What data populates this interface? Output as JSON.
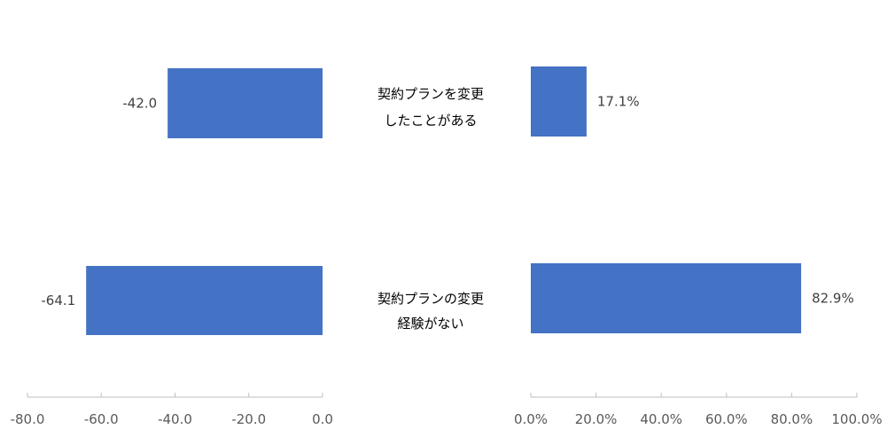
{
  "chart_data": [
    {
      "type": "bar",
      "orientation": "horizontal",
      "categories": [
        "契約プランを変更したことがある",
        "契約プランの変更経験がない"
      ],
      "category_lines": [
        [
          "契約プランを変更",
          "したことがある"
        ],
        [
          "契約プランの変更",
          "経験がない"
        ]
      ],
      "series": [
        {
          "values": [
            -42.0,
            -64.1
          ]
        }
      ],
      "value_labels": [
        "-42.0",
        "-64.1"
      ],
      "xlim": [
        -80,
        0
      ],
      "ticks": [
        -80,
        -60,
        -40,
        -20,
        0
      ],
      "tick_labels": [
        "-80.0",
        "-60.0",
        "-40.0",
        "-20.0",
        "0.0"
      ],
      "grid": false,
      "color": "#4472C4"
    },
    {
      "type": "bar",
      "orientation": "horizontal",
      "categories": [
        "契約プランを変更したことがある",
        "契約プランの変更経験がない"
      ],
      "series": [
        {
          "values": [
            17.1,
            82.9
          ]
        }
      ],
      "value_labels": [
        "17.1%",
        "82.9%"
      ],
      "xlim": [
        0,
        100
      ],
      "ticks": [
        0,
        20,
        40,
        60,
        80,
        100
      ],
      "tick_labels": [
        "0.0%",
        "20.0%",
        "40.0%",
        "60.0%",
        "80.0%",
        "100.0%"
      ],
      "grid": false,
      "color": "#4472C4"
    }
  ]
}
